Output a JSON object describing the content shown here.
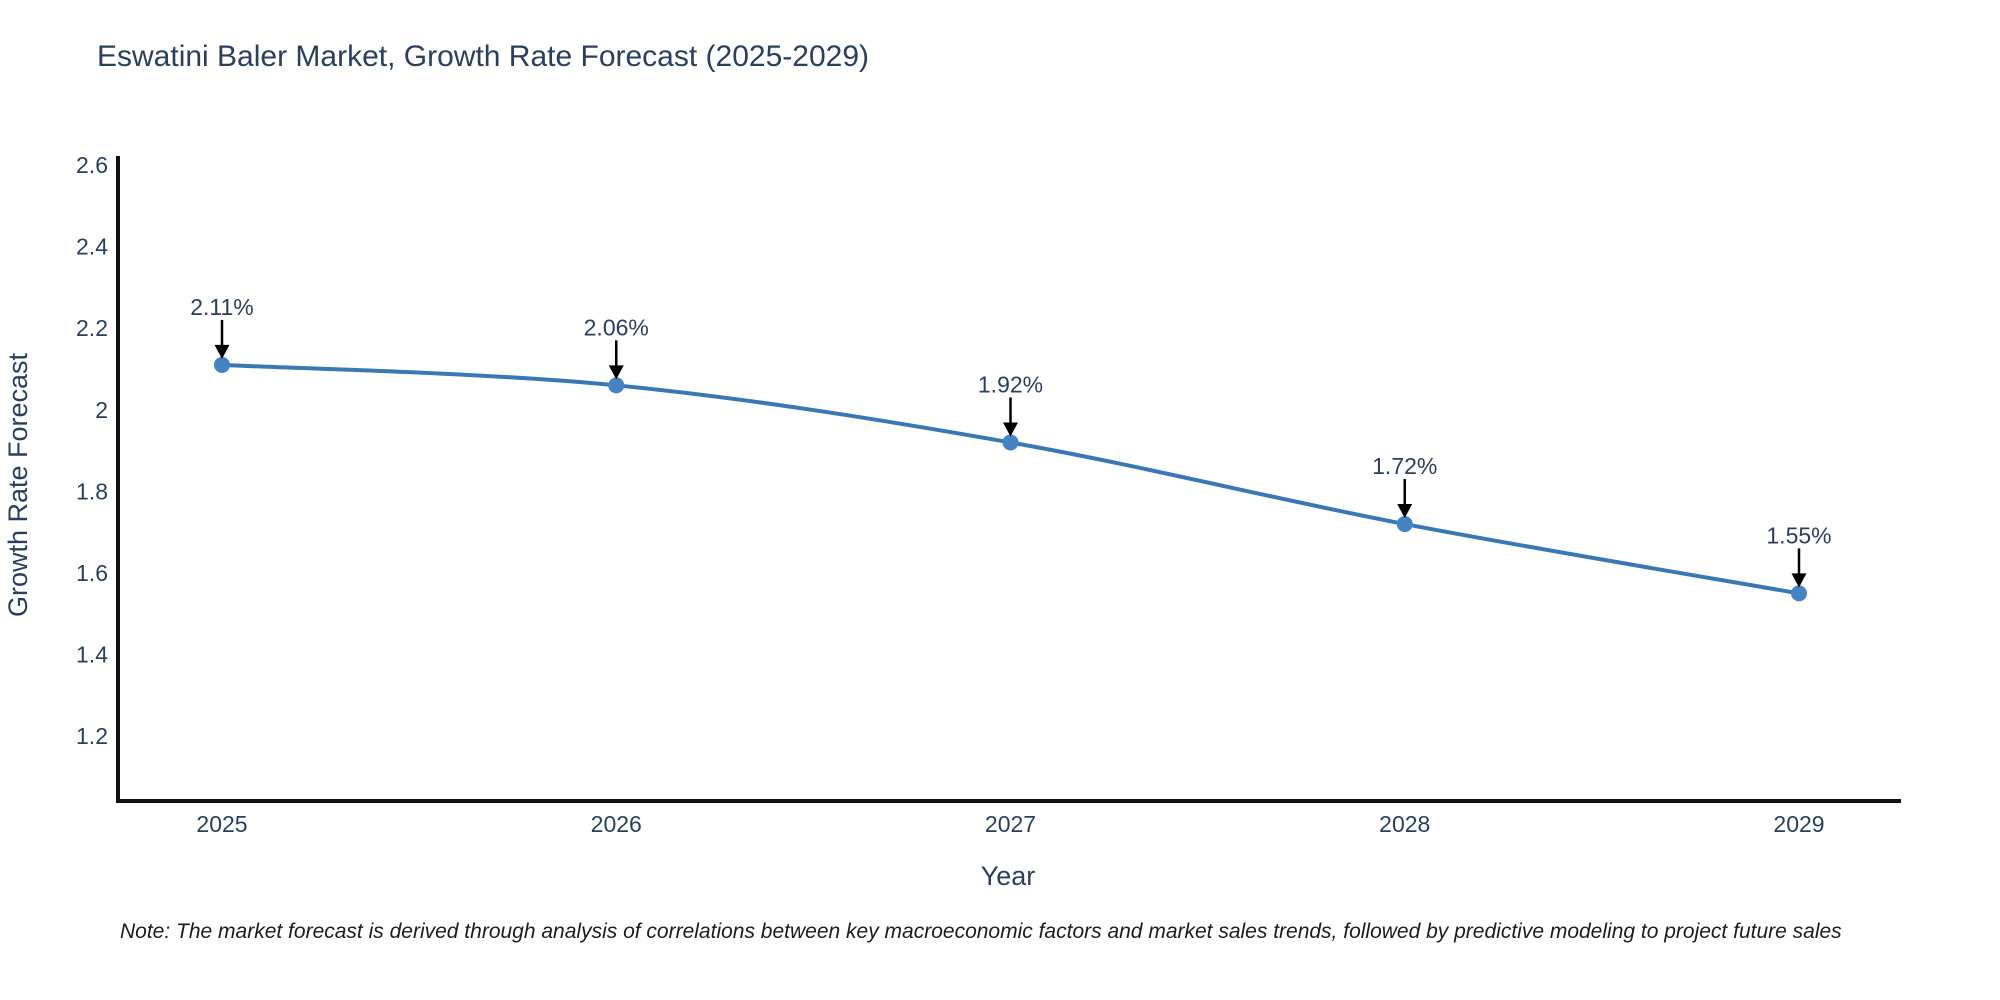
{
  "chart_data": {
    "type": "line",
    "title": "Eswatini Baler Market, Growth Rate Forecast (2025-2029)",
    "xlabel": "Year",
    "ylabel": "Growth Rate Forecast",
    "x": [
      2025,
      2026,
      2027,
      2028,
      2029
    ],
    "values": [
      2.11,
      2.06,
      1.92,
      1.72,
      1.55
    ],
    "point_labels": [
      "2.11%",
      "2.06%",
      "1.92%",
      "1.72%",
      "1.55%"
    ],
    "xtick_labels": [
      "2025",
      "2026",
      "2027",
      "2028",
      "2029"
    ],
    "ytick_values": [
      2.6,
      2.4,
      2.2,
      2.0,
      1.8,
      1.6,
      1.4,
      1.2
    ],
    "ytick_labels": [
      "2.6",
      "2.4",
      "2.2",
      "2",
      "1.8",
      "1.6",
      "1.4",
      "1.2"
    ],
    "ylim": [
      1.04,
      2.62
    ],
    "grid": false,
    "legend": "none",
    "line_color": "#3a78b5",
    "marker_color": "#4484c4",
    "annotation_arrow_color": "#000000",
    "title_color": "#2a3f5f",
    "axis_line_color": "#111111"
  },
  "note": "Note: The market forecast is derived through analysis of correlations between key macroeconomic factors and market sales trends, followed by predictive modeling to project future sales"
}
